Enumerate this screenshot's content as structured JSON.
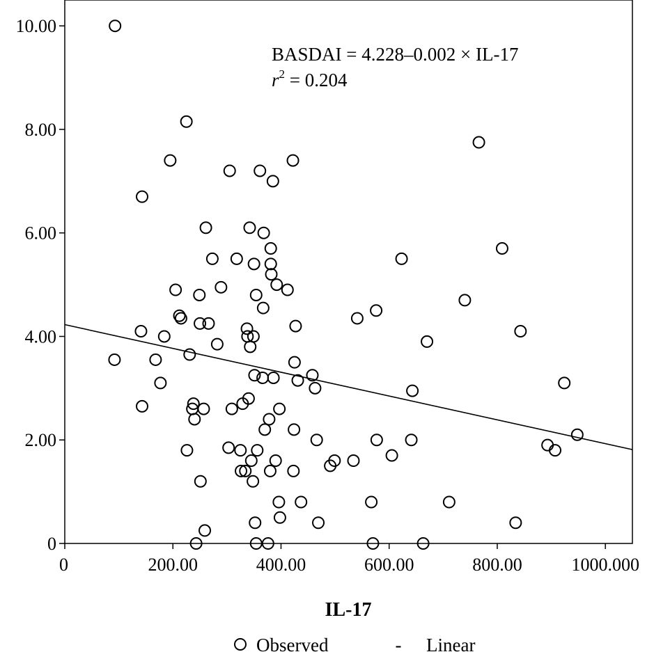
{
  "chart_data": {
    "type": "scatter",
    "xlabel": "IL-17",
    "ylabel": "",
    "xlim": [
      0,
      1050
    ],
    "ylim": [
      0,
      10.5
    ],
    "x_ticks": [
      0,
      200,
      400,
      600,
      800,
      1000
    ],
    "x_tick_labels": [
      "0",
      "200.00",
      "400.00",
      "600.00",
      "800.00",
      "1000.000"
    ],
    "y_ticks": [
      0,
      2,
      4,
      6,
      8,
      10
    ],
    "y_tick_labels": [
      "0",
      "2.00",
      "4.00",
      "6.00",
      "8.00",
      "10.00"
    ],
    "grid": false,
    "legend_placement": "bottom",
    "annotation": {
      "equation": "BASDAI = 4.228–0.002 × IL-17",
      "r2_symbol": "r",
      "r2_exponent": "2",
      "r2_value": " = 0.204"
    },
    "legend": [
      {
        "marker": "○",
        "label": "Observed"
      },
      {
        "marker": "-",
        "label": "Linear"
      }
    ],
    "fit_line": {
      "name": "Linear",
      "intercept": 4.228,
      "slope": -0.0023
    },
    "series": [
      {
        "name": "Observed",
        "points": [
          [
            93,
            10.0
          ],
          [
            225,
            8.15
          ],
          [
            195,
            7.4
          ],
          [
            143,
            6.7
          ],
          [
            92,
            3.55
          ],
          [
            141,
            4.1
          ],
          [
            143,
            2.65
          ],
          [
            168,
            3.55
          ],
          [
            177,
            3.1
          ],
          [
            184,
            4.0
          ],
          [
            205,
            4.9
          ],
          [
            212,
            4.4
          ],
          [
            215,
            4.35
          ],
          [
            226,
            1.8
          ],
          [
            231,
            3.65
          ],
          [
            236,
            2.6
          ],
          [
            238,
            2.7
          ],
          [
            240,
            2.4
          ],
          [
            243,
            0.0
          ],
          [
            249,
            4.8
          ],
          [
            250,
            4.25
          ],
          [
            251,
            1.2
          ],
          [
            257,
            2.6
          ],
          [
            259,
            0.25
          ],
          [
            261,
            6.1
          ],
          [
            266,
            4.25
          ],
          [
            273,
            5.5
          ],
          [
            282,
            3.85
          ],
          [
            289,
            4.95
          ],
          [
            303,
            1.85
          ],
          [
            305,
            7.2
          ],
          [
            309,
            2.6
          ],
          [
            318,
            5.5
          ],
          [
            325,
            1.8
          ],
          [
            326,
            1.4
          ],
          [
            329,
            2.7
          ],
          [
            334,
            1.4
          ],
          [
            337,
            4.15
          ],
          [
            338,
            4.0
          ],
          [
            340,
            2.8
          ],
          [
            342,
            6.1
          ],
          [
            343,
            3.8
          ],
          [
            345,
            1.6
          ],
          [
            348,
            1.2
          ],
          [
            349,
            4.0
          ],
          [
            350,
            5.4
          ],
          [
            351,
            3.25
          ],
          [
            352,
            0.4
          ],
          [
            354,
            4.8
          ],
          [
            354,
            0.0
          ],
          [
            356,
            1.8
          ],
          [
            361,
            7.2
          ],
          [
            366,
            3.2
          ],
          [
            367,
            4.55
          ],
          [
            368,
            6.0
          ],
          [
            370,
            2.2
          ],
          [
            376,
            0.0
          ],
          [
            378,
            2.4
          ],
          [
            380,
            1.4
          ],
          [
            381,
            5.7
          ],
          [
            381,
            5.4
          ],
          [
            382,
            5.2
          ],
          [
            385,
            7.0
          ],
          [
            386,
            3.2
          ],
          [
            390,
            1.6
          ],
          [
            392,
            5.0
          ],
          [
            396,
            0.8
          ],
          [
            397,
            2.6
          ],
          [
            398,
            0.5
          ],
          [
            412,
            4.9
          ],
          [
            422,
            7.4
          ],
          [
            423,
            1.4
          ],
          [
            424,
            2.2
          ],
          [
            425,
            3.5
          ],
          [
            427,
            4.2
          ],
          [
            431,
            3.15
          ],
          [
            437,
            0.8
          ],
          [
            458,
            3.25
          ],
          [
            463,
            3.0
          ],
          [
            466,
            2.0
          ],
          [
            469,
            0.4
          ],
          [
            491,
            1.5
          ],
          [
            499,
            1.6
          ],
          [
            534,
            1.6
          ],
          [
            541,
            4.35
          ],
          [
            567,
            0.8
          ],
          [
            570,
            0.0
          ],
          [
            576,
            4.5
          ],
          [
            577,
            2.0
          ],
          [
            605,
            1.7
          ],
          [
            623,
            5.5
          ],
          [
            641,
            2.0
          ],
          [
            643,
            2.95
          ],
          [
            663,
            0.0
          ],
          [
            670,
            3.9
          ],
          [
            711,
            0.8
          ],
          [
            740,
            4.7
          ],
          [
            766,
            7.75
          ],
          [
            809,
            5.7
          ],
          [
            834,
            0.4
          ],
          [
            843,
            4.1
          ],
          [
            893,
            1.9
          ],
          [
            907,
            1.8
          ],
          [
            924,
            3.1
          ],
          [
            948,
            2.1
          ]
        ]
      }
    ]
  }
}
